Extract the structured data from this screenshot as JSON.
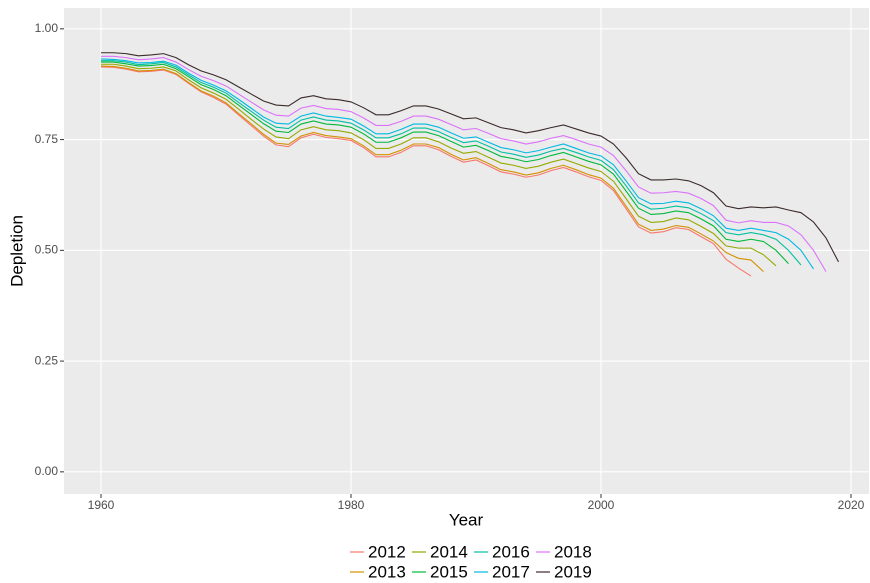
{
  "chart_data": {
    "type": "line",
    "x_label": "Year",
    "y_label": "Depletion",
    "x": [
      1960,
      1961,
      1962,
      1963,
      1964,
      1965,
      1966,
      1967,
      1968,
      1969,
      1970,
      1971,
      1972,
      1973,
      1974,
      1975,
      1976,
      1977,
      1978,
      1979,
      1980,
      1981,
      1982,
      1983,
      1984,
      1985,
      1986,
      1987,
      1988,
      1989,
      1990,
      1991,
      1992,
      1993,
      1994,
      1995,
      1996,
      1997,
      1998,
      1999,
      2000,
      2001,
      2002,
      2003,
      2004,
      2005,
      2006,
      2007,
      2008,
      2009,
      2010,
      2011,
      2012,
      2013,
      2014,
      2015,
      2016,
      2017,
      2018,
      2019
    ],
    "xlim": [
      1957.04,
      2021.44
    ],
    "xticks": [
      1960,
      1980,
      2000,
      2020
    ],
    "ylim": [
      -0.05,
      1.047
    ],
    "yticks": [
      {
        "value": 0,
        "label": "0.00"
      },
      0.25,
      {
        "value": 0.5,
        "label": "0.50"
      },
      0.75,
      {
        "value": 1,
        "label": "1.00"
      }
    ],
    "grid": true,
    "legend": "bottom",
    "series": [
      {
        "name": "2012",
        "color": "#F8766D",
        "values": [
          0.914,
          0.913,
          0.909,
          0.903,
          0.904,
          0.907,
          0.897,
          0.877,
          0.858,
          0.845,
          0.83,
          0.806,
          0.782,
          0.758,
          0.738,
          0.734,
          0.754,
          0.762,
          0.755,
          0.752,
          0.748,
          0.732,
          0.711,
          0.711,
          0.721,
          0.736,
          0.736,
          0.727,
          0.712,
          0.699,
          0.704,
          0.691,
          0.677,
          0.672,
          0.665,
          0.67,
          0.68,
          0.687,
          0.677,
          0.666,
          0.658,
          0.635,
          0.594,
          0.553,
          0.539,
          0.542,
          0.551,
          0.547,
          0.531,
          0.515,
          0.48,
          0.46,
          0.442,
          null,
          null,
          null,
          null,
          null,
          null,
          null
        ]
      },
      {
        "name": "2013",
        "color": "#D39200",
        "values": [
          0.916,
          0.915,
          0.911,
          0.905,
          0.906,
          0.909,
          0.899,
          0.879,
          0.86,
          0.848,
          0.833,
          0.809,
          0.786,
          0.762,
          0.742,
          0.739,
          0.758,
          0.766,
          0.759,
          0.756,
          0.752,
          0.736,
          0.716,
          0.716,
          0.726,
          0.74,
          0.74,
          0.732,
          0.717,
          0.704,
          0.709,
          0.696,
          0.682,
          0.677,
          0.67,
          0.675,
          0.685,
          0.692,
          0.682,
          0.671,
          0.663,
          0.64,
          0.6,
          0.559,
          0.545,
          0.548,
          0.556,
          0.552,
          0.537,
          0.521,
          0.495,
          0.482,
          0.478,
          0.452,
          null,
          null,
          null,
          null,
          null,
          null
        ]
      },
      {
        "name": "2014",
        "color": "#93AA00",
        "values": [
          0.92,
          0.92,
          0.916,
          0.91,
          0.911,
          0.914,
          0.905,
          0.885,
          0.867,
          0.855,
          0.841,
          0.819,
          0.796,
          0.774,
          0.756,
          0.752,
          0.772,
          0.779,
          0.772,
          0.77,
          0.765,
          0.75,
          0.73,
          0.73,
          0.74,
          0.754,
          0.754,
          0.745,
          0.731,
          0.719,
          0.723,
          0.71,
          0.697,
          0.692,
          0.685,
          0.69,
          0.699,
          0.706,
          0.696,
          0.686,
          0.678,
          0.656,
          0.617,
          0.577,
          0.563,
          0.565,
          0.573,
          0.569,
          0.554,
          0.538,
          0.51,
          0.505,
          0.505,
          0.49,
          0.465,
          null,
          null,
          null,
          null,
          null
        ]
      },
      {
        "name": "2015",
        "color": "#00BA38",
        "values": [
          0.925,
          0.925,
          0.921,
          0.916,
          0.917,
          0.92,
          0.91,
          0.892,
          0.874,
          0.863,
          0.849,
          0.828,
          0.807,
          0.786,
          0.769,
          0.766,
          0.785,
          0.792,
          0.785,
          0.783,
          0.778,
          0.763,
          0.744,
          0.744,
          0.754,
          0.767,
          0.767,
          0.759,
          0.746,
          0.733,
          0.737,
          0.725,
          0.712,
          0.707,
          0.7,
          0.705,
          0.714,
          0.721,
          0.711,
          0.701,
          0.693,
          0.672,
          0.634,
          0.595,
          0.581,
          0.583,
          0.589,
          0.585,
          0.571,
          0.555,
          0.525,
          0.52,
          0.525,
          0.52,
          0.5,
          0.47,
          null,
          null,
          null,
          null
        ]
      },
      {
        "name": "2016",
        "color": "#00C19F",
        "values": [
          0.928,
          0.928,
          0.925,
          0.919,
          0.921,
          0.924,
          0.914,
          0.896,
          0.879,
          0.868,
          0.855,
          0.834,
          0.814,
          0.794,
          0.778,
          0.775,
          0.794,
          0.801,
          0.794,
          0.792,
          0.787,
          0.772,
          0.754,
          0.754,
          0.763,
          0.776,
          0.776,
          0.768,
          0.755,
          0.743,
          0.747,
          0.735,
          0.722,
          0.717,
          0.71,
          0.715,
          0.724,
          0.73,
          0.721,
          0.711,
          0.703,
          0.682,
          0.646,
          0.607,
          0.593,
          0.595,
          0.6,
          0.596,
          0.583,
          0.567,
          0.54,
          0.535,
          0.54,
          0.535,
          0.525,
          0.5,
          0.467,
          null,
          null,
          null
        ]
      },
      {
        "name": "2017",
        "color": "#00B9E3",
        "values": [
          0.932,
          0.931,
          0.928,
          0.923,
          0.924,
          0.927,
          0.918,
          0.9,
          0.884,
          0.873,
          0.86,
          0.841,
          0.821,
          0.801,
          0.787,
          0.785,
          0.803,
          0.81,
          0.803,
          0.8,
          0.796,
          0.781,
          0.763,
          0.763,
          0.773,
          0.785,
          0.785,
          0.778,
          0.765,
          0.753,
          0.756,
          0.744,
          0.732,
          0.727,
          0.72,
          0.725,
          0.733,
          0.74,
          0.73,
          0.72,
          0.713,
          0.693,
          0.657,
          0.619,
          0.605,
          0.606,
          0.611,
          0.607,
          0.594,
          0.578,
          0.55,
          0.545,
          0.55,
          0.545,
          0.54,
          0.525,
          0.5,
          0.458,
          null,
          null
        ]
      },
      {
        "name": "2018",
        "color": "#DB72FB",
        "values": [
          0.938,
          0.938,
          0.935,
          0.93,
          0.932,
          0.935,
          0.925,
          0.908,
          0.893,
          0.883,
          0.871,
          0.853,
          0.835,
          0.817,
          0.805,
          0.803,
          0.821,
          0.827,
          0.82,
          0.818,
          0.813,
          0.799,
          0.782,
          0.782,
          0.791,
          0.803,
          0.803,
          0.796,
          0.784,
          0.772,
          0.775,
          0.764,
          0.752,
          0.747,
          0.74,
          0.745,
          0.753,
          0.759,
          0.75,
          0.74,
          0.733,
          0.714,
          0.68,
          0.643,
          0.629,
          0.63,
          0.633,
          0.629,
          0.617,
          0.601,
          0.568,
          0.562,
          0.567,
          0.563,
          0.563,
          0.555,
          0.535,
          0.5,
          0.452,
          null
        ]
      },
      {
        "name": "2019",
        "color": "#3B2A2A",
        "values": [
          0.946,
          0.946,
          0.944,
          0.939,
          0.941,
          0.944,
          0.935,
          0.919,
          0.905,
          0.896,
          0.885,
          0.869,
          0.853,
          0.837,
          0.828,
          0.826,
          0.844,
          0.849,
          0.842,
          0.84,
          0.835,
          0.822,
          0.806,
          0.806,
          0.815,
          0.826,
          0.826,
          0.819,
          0.808,
          0.797,
          0.799,
          0.788,
          0.777,
          0.772,
          0.765,
          0.77,
          0.777,
          0.783,
          0.774,
          0.765,
          0.758,
          0.74,
          0.709,
          0.673,
          0.659,
          0.659,
          0.661,
          0.657,
          0.646,
          0.63,
          0.6,
          0.594,
          0.598,
          0.596,
          0.598,
          0.591,
          0.585,
          0.564,
          0.528,
          0.474
        ]
      }
    ]
  }
}
